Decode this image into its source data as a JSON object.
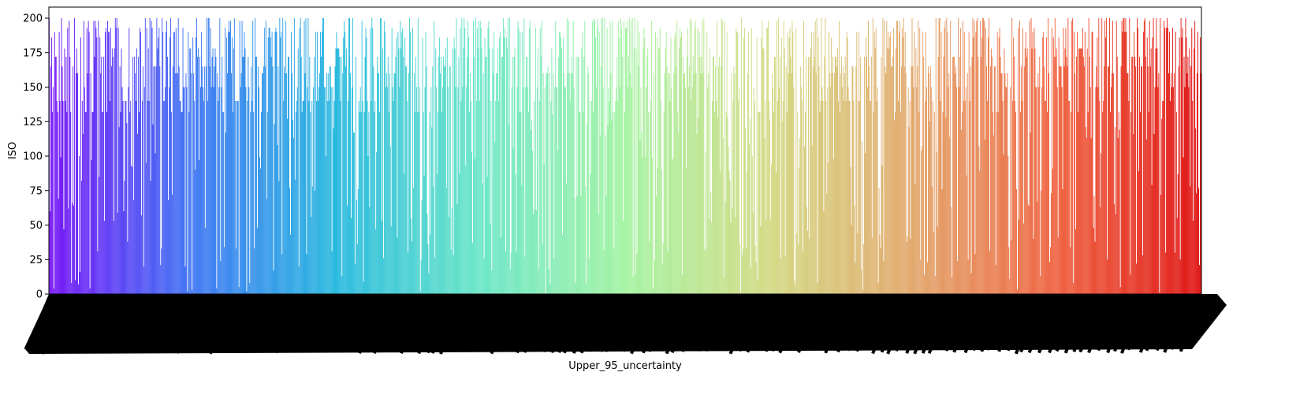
{
  "chart_data": {
    "type": "bar",
    "title": "",
    "xlabel": "Upper_95_uncertainty",
    "ylabel": "ISO",
    "ylim": [
      0,
      208
    ],
    "yticks": [
      0,
      25,
      50,
      75,
      100,
      125,
      150,
      175,
      200
    ],
    "grid": false,
    "legend": "none",
    "palette": "rainbow",
    "palette_stops": [
      "#6a00f6",
      "#2f6cf2",
      "#17b4dc",
      "#5ee4c2",
      "#9df29b",
      "#cfd77a",
      "#e0a060",
      "#ee5530",
      "#dd0000"
    ],
    "bar_count": 1500,
    "values_seed": 1,
    "values_note": "Heights vary densely between 0 and 200 across ~1500 overlapping category bars; individual category tick labels overlap into an unreadable black band."
  }
}
